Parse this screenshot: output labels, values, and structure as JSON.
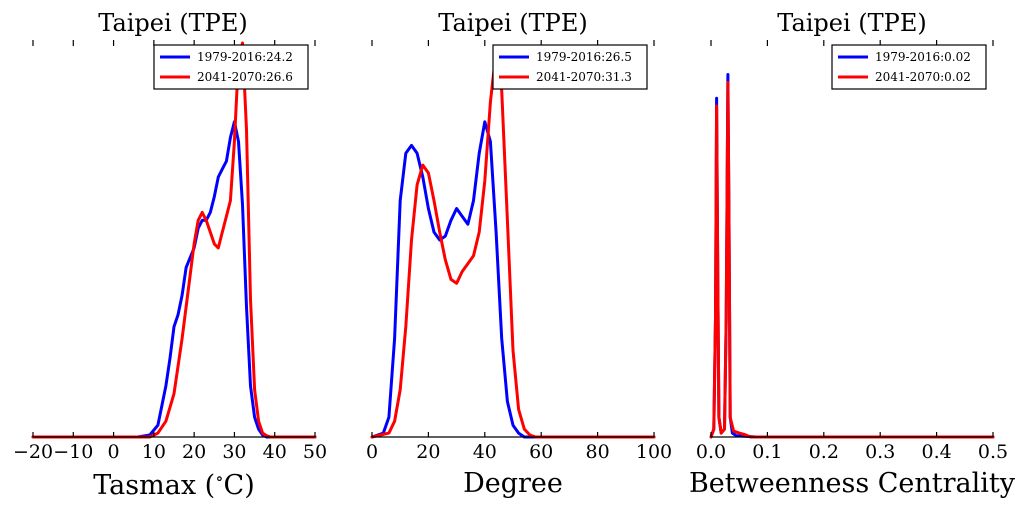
{
  "chart_data": [
    {
      "type": "line",
      "title": "Taipei (TPE)",
      "xlabel": "Tasmax ($^\\circ$C)",
      "xlabel_main": "Tasmax (",
      "xlabel_sup": "∘",
      "xlabel_tail": "C)",
      "ylabel": "",
      "xlim": [
        -20,
        50
      ],
      "ylim": [
        0,
        1.0
      ],
      "xticks": [
        -20,
        -10,
        0,
        10,
        20,
        30,
        40,
        50
      ],
      "xtick_labels": [
        "−20",
        "−10",
        "0",
        "10",
        "20",
        "30",
        "40",
        "50"
      ],
      "legend_position": "top-right",
      "series": [
        {
          "name": "1979-2016:24.2",
          "color": "#0000ff",
          "x": [
            -20,
            6,
            9,
            11,
            13,
            14,
            15,
            16,
            17,
            18,
            20,
            21,
            22,
            23,
            24,
            25,
            26,
            27,
            28,
            29,
            30,
            31,
            32,
            33,
            34,
            35,
            36,
            37,
            38,
            50
          ],
          "y": [
            0,
            0,
            0.005,
            0.03,
            0.13,
            0.2,
            0.28,
            0.31,
            0.36,
            0.43,
            0.48,
            0.53,
            0.55,
            0.55,
            0.57,
            0.61,
            0.66,
            0.68,
            0.7,
            0.76,
            0.8,
            0.75,
            0.59,
            0.33,
            0.13,
            0.05,
            0.02,
            0.005,
            0,
            0
          ]
        },
        {
          "name": "2041-2070:26.6",
          "color": "#ff0000",
          "x": [
            -20,
            9,
            11,
            13,
            15,
            17,
            19,
            20,
            21,
            22,
            23,
            24,
            25,
            26,
            27,
            28,
            29,
            30,
            31,
            32,
            33,
            34,
            35,
            36,
            37,
            38,
            39,
            50
          ],
          "y": [
            0,
            0,
            0.01,
            0.04,
            0.11,
            0.25,
            0.41,
            0.49,
            0.55,
            0.57,
            0.55,
            0.52,
            0.49,
            0.48,
            0.52,
            0.56,
            0.6,
            0.75,
            0.96,
            1.0,
            0.78,
            0.35,
            0.12,
            0.04,
            0.01,
            0.003,
            0,
            0
          ]
        }
      ]
    },
    {
      "type": "line",
      "title": "Taipei (TPE)",
      "xlabel": "Degree",
      "ylabel": "",
      "xlim": [
        0,
        100
      ],
      "ylim": [
        0,
        1.0
      ],
      "xticks": [
        0,
        20,
        40,
        60,
        80,
        100
      ],
      "xtick_labels": [
        "0",
        "20",
        "40",
        "60",
        "80",
        "100"
      ],
      "legend_position": "top-right",
      "series": [
        {
          "name": "1979-2016:26.5",
          "color": "#0000ff",
          "x": [
            0,
            4,
            6,
            8,
            10,
            12,
            14,
            16,
            18,
            20,
            22,
            24,
            26,
            28,
            30,
            32,
            34,
            36,
            38,
            40,
            42,
            44,
            46,
            48,
            50,
            52,
            54,
            100
          ],
          "y": [
            0,
            0.01,
            0.05,
            0.25,
            0.6,
            0.72,
            0.74,
            0.72,
            0.66,
            0.58,
            0.52,
            0.5,
            0.51,
            0.55,
            0.58,
            0.56,
            0.54,
            0.6,
            0.72,
            0.8,
            0.75,
            0.52,
            0.25,
            0.09,
            0.03,
            0.01,
            0,
            0
          ]
        },
        {
          "name": "2041-2070:31.3",
          "color": "#ff0000",
          "x": [
            0,
            6,
            8,
            10,
            12,
            14,
            16,
            18,
            20,
            22,
            24,
            26,
            28,
            30,
            32,
            34,
            36,
            38,
            40,
            42,
            44,
            46,
            48,
            50,
            52,
            54,
            56,
            58,
            100
          ],
          "y": [
            0,
            0.01,
            0.04,
            0.12,
            0.28,
            0.5,
            0.64,
            0.69,
            0.67,
            0.6,
            0.52,
            0.45,
            0.4,
            0.39,
            0.42,
            0.44,
            0.46,
            0.52,
            0.65,
            0.85,
            0.98,
            0.88,
            0.55,
            0.22,
            0.07,
            0.02,
            0.005,
            0,
            0
          ]
        }
      ]
    },
    {
      "type": "line",
      "title": "Taipei (TPE)",
      "xlabel": "Betweenness Centrality",
      "ylabel": "",
      "xlim": [
        0.0,
        0.5
      ],
      "ylim": [
        0,
        1.0
      ],
      "xticks": [
        0.0,
        0.1,
        0.2,
        0.3,
        0.4,
        0.5
      ],
      "xtick_labels": [
        "0.0",
        "0.1",
        "0.2",
        "0.3",
        "0.4",
        "0.5"
      ],
      "legend_position": "top-right",
      "series": [
        {
          "name": "1979-2016:0.02",
          "color": "#0000ff",
          "x": [
            0.0,
            0.005,
            0.008,
            0.01,
            0.012,
            0.014,
            0.018,
            0.024,
            0.027,
            0.03,
            0.032,
            0.034,
            0.038,
            0.045,
            0.06,
            0.08,
            0.5
          ],
          "y": [
            0,
            0.02,
            0.3,
            0.86,
            0.4,
            0.05,
            0.01,
            0.02,
            0.3,
            0.92,
            0.55,
            0.05,
            0.01,
            0.003,
            0.002,
            0,
            0
          ]
        },
        {
          "name": "2041-2070:0.02",
          "color": "#ff0000",
          "x": [
            0.0,
            0.005,
            0.008,
            0.01,
            0.012,
            0.014,
            0.018,
            0.024,
            0.027,
            0.03,
            0.032,
            0.034,
            0.04,
            0.05,
            0.06,
            0.07,
            0.5
          ],
          "y": [
            0,
            0.02,
            0.3,
            0.84,
            0.4,
            0.05,
            0.01,
            0.02,
            0.3,
            0.9,
            0.55,
            0.05,
            0.015,
            0.01,
            0.006,
            0,
            0
          ]
        }
      ]
    }
  ]
}
